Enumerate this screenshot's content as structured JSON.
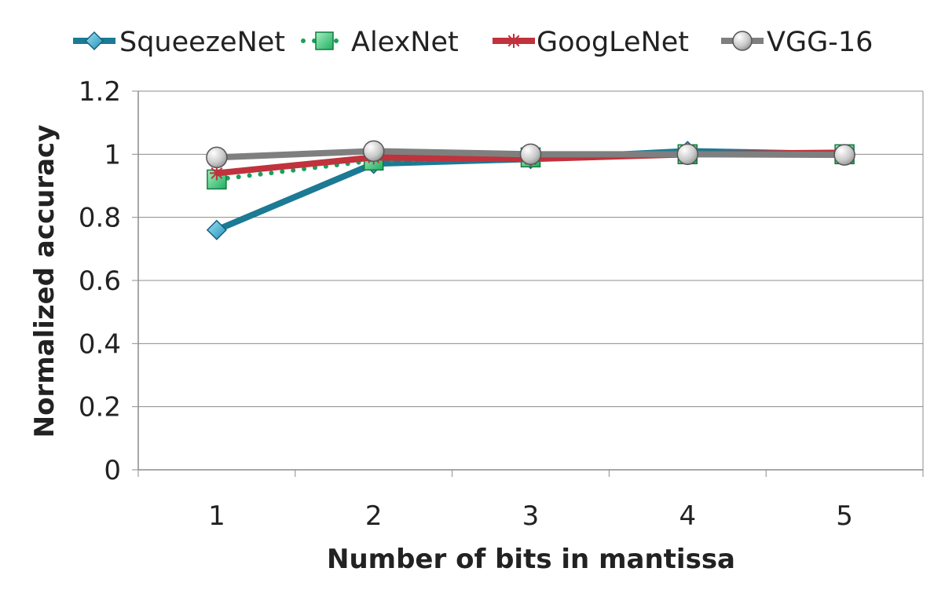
{
  "chart_data": {
    "type": "line",
    "title": "",
    "xlabel": "Number of bits in mantissa",
    "ylabel": "Normalized accuracy",
    "categories": [
      "1",
      "2",
      "3",
      "4",
      "5"
    ],
    "ylim": [
      0,
      1.2
    ],
    "y_ticks": [
      "0",
      "0.2",
      "0.4",
      "0.6",
      "0.8",
      "1",
      "1.2"
    ],
    "grid": true,
    "legend_position": "top",
    "series": [
      {
        "name": "SqueezeNet",
        "values": [
          0.76,
          0.97,
          0.985,
          1.01,
          1.0
        ],
        "color": "#1b7a94",
        "marker": "diamond",
        "line_style": "solid"
      },
      {
        "name": "AlexNet",
        "values": [
          0.92,
          0.98,
          0.99,
          1.0,
          1.0
        ],
        "color": "#19a05a",
        "marker": "square",
        "line_style": "dotted"
      },
      {
        "name": "GoogLeNet",
        "values": [
          0.94,
          0.99,
          0.985,
          1.0,
          1.005
        ],
        "color": "#c0323c",
        "marker": "asterisk",
        "line_style": "solid"
      },
      {
        "name": "VGG-16",
        "values": [
          0.99,
          1.01,
          1.0,
          1.0,
          0.998
        ],
        "color": "#7f7f7f",
        "marker": "circle",
        "line_style": "solid"
      }
    ]
  }
}
